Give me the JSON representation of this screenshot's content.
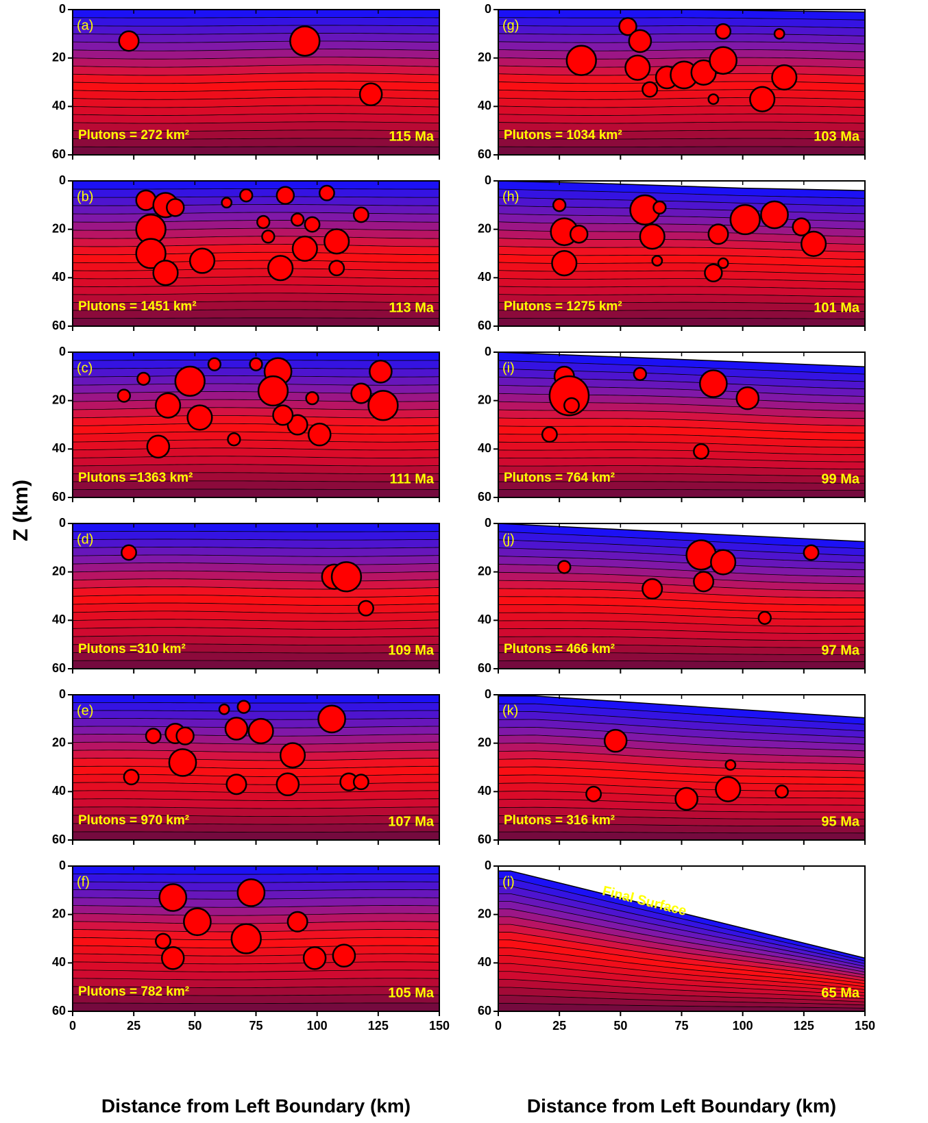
{
  "ylabel": "Z (km)",
  "colormap": [
    "#1010ff",
    "#8018a8",
    "#ff1010",
    "#d00a30",
    "#6a0a40"
  ],
  "pluton_color": "#ff0000",
  "chart_data": [
    {
      "type": "section",
      "label": "(a)",
      "annotation": "Plutons = 272 km²",
      "age": "115 Ma",
      "xlim": [
        0,
        150
      ],
      "ylim": [
        60,
        0
      ],
      "xticks": [
        0,
        25,
        50,
        75,
        100,
        125,
        150
      ],
      "yticks": [
        0,
        20,
        40,
        60
      ],
      "surface": {
        "x": [
          0,
          150
        ],
        "y": [
          0,
          0
        ]
      },
      "plutons": {
        "x": [
          23,
          95,
          122
        ],
        "y": [
          13,
          13,
          35
        ],
        "r": [
          4,
          6,
          4.5
        ]
      }
    },
    {
      "type": "section",
      "label": "(b)",
      "annotation": "Plutons = 1451 km²",
      "age": "113 Ma",
      "xlim": [
        0,
        150
      ],
      "ylim": [
        60,
        0
      ],
      "xticks": [
        0,
        25,
        50,
        75,
        100,
        125,
        150
      ],
      "yticks": [
        0,
        20,
        40,
        60
      ],
      "surface": {
        "x": [
          0,
          150
        ],
        "y": [
          0,
          0
        ]
      },
      "plutons": {
        "x": [
          30,
          38,
          42,
          32,
          32,
          38,
          53,
          63,
          71,
          78,
          80,
          87,
          92,
          85,
          95,
          104,
          108,
          108,
          118,
          98
        ],
        "y": [
          8,
          10,
          11,
          20,
          30,
          38,
          33,
          9,
          6,
          17,
          23,
          6,
          16,
          36,
          28,
          5,
          25,
          36,
          14,
          18
        ],
        "r": [
          4,
          5,
          3.5,
          6,
          6,
          5,
          5,
          2,
          2.5,
          2.5,
          2.5,
          3.5,
          2.5,
          5,
          5,
          3,
          5,
          3,
          3,
          3
        ]
      }
    },
    {
      "type": "section",
      "label": "(c)",
      "annotation": "Plutons =1363 km²",
      "age": "111 Ma",
      "xlim": [
        0,
        150
      ],
      "ylim": [
        60,
        0
      ],
      "xticks": [
        0,
        25,
        50,
        75,
        100,
        125,
        150
      ],
      "yticks": [
        0,
        20,
        40,
        60
      ],
      "surface": {
        "x": [
          0,
          150
        ],
        "y": [
          0,
          0
        ]
      },
      "plutons": {
        "x": [
          21,
          29,
          48,
          39,
          52,
          58,
          75,
          84,
          82,
          66,
          35,
          98,
          92,
          101,
          118,
          126,
          127,
          86
        ],
        "y": [
          18,
          11,
          12,
          22,
          27,
          5,
          5,
          8,
          16,
          36,
          39,
          19,
          30,
          34,
          17,
          8,
          22,
          26
        ],
        "r": [
          2.5,
          2.5,
          6,
          5,
          5,
          2.5,
          2.5,
          5.5,
          6,
          2.5,
          4.5,
          2.5,
          4,
          4.5,
          4,
          4.5,
          6,
          4
        ]
      }
    },
    {
      "type": "section",
      "label": "(d)",
      "annotation": "Plutons =310 km²",
      "age": "109 Ma",
      "xlim": [
        0,
        150
      ],
      "ylim": [
        60,
        0
      ],
      "xticks": [
        0,
        25,
        50,
        75,
        100,
        125,
        150
      ],
      "yticks": [
        0,
        20,
        40,
        60
      ],
      "surface": {
        "x": [
          0,
          150
        ],
        "y": [
          0,
          0
        ]
      },
      "plutons": {
        "x": [
          23,
          107,
          112,
          120
        ],
        "y": [
          12,
          22,
          22,
          35
        ],
        "r": [
          3,
          5,
          6,
          3
        ]
      }
    },
    {
      "type": "section",
      "label": "(e)",
      "annotation": "Plutons = 970 km²",
      "age": "107 Ma",
      "xlim": [
        0,
        150
      ],
      "ylim": [
        60,
        0
      ],
      "xticks": [
        0,
        25,
        50,
        75,
        100,
        125,
        150
      ],
      "yticks": [
        0,
        20,
        40,
        60
      ],
      "surface": {
        "x": [
          0,
          150
        ],
        "y": [
          0,
          0
        ]
      },
      "plutons": {
        "x": [
          33,
          42,
          46,
          45,
          62,
          67,
          70,
          77,
          90,
          88,
          67,
          106,
          113,
          118,
          24
        ],
        "y": [
          17,
          16,
          17,
          28,
          6,
          14,
          5,
          15,
          25,
          37,
          37,
          10,
          36,
          36,
          34
        ],
        "r": [
          3,
          4,
          3.5,
          5.5,
          2,
          4.5,
          2.5,
          5,
          5,
          4.5,
          4,
          5.5,
          3.5,
          3,
          3
        ]
      }
    },
    {
      "type": "section",
      "label": "(f)",
      "annotation": "Plutons = 782 km²",
      "age": "105 Ma",
      "xlim": [
        0,
        150
      ],
      "ylim": [
        60,
        0
      ],
      "xticks": [
        0,
        25,
        50,
        75,
        100,
        125,
        150
      ],
      "yticks": [
        0,
        20,
        40,
        60
      ],
      "xlabel": "Distance from Left Boundary (km)",
      "surface": {
        "x": [
          0,
          150
        ],
        "y": [
          0,
          0
        ]
      },
      "plutons": {
        "x": [
          41,
          51,
          37,
          41,
          73,
          71,
          92,
          99,
          111
        ],
        "y": [
          13,
          23,
          31,
          38,
          11,
          30,
          23,
          38,
          37
        ],
        "r": [
          5.5,
          5.5,
          3,
          4.5,
          5.5,
          6,
          4,
          4.5,
          4.5
        ]
      }
    },
    {
      "type": "section",
      "label": "(g)",
      "annotation": "Plutons = 1034 km²",
      "age": "103 Ma",
      "xlim": [
        0,
        150
      ],
      "ylim": [
        60,
        0
      ],
      "xticks": [
        0,
        25,
        50,
        75,
        100,
        125,
        150
      ],
      "yticks": [
        0,
        20,
        40,
        60
      ],
      "surface": {
        "x": [
          0,
          75,
          150
        ],
        "y": [
          0,
          0,
          1
        ]
      },
      "plutons": {
        "x": [
          53,
          58,
          34,
          57,
          92,
          115,
          69,
          76,
          84,
          92,
          108,
          117,
          88,
          62
        ],
        "y": [
          7,
          13,
          21,
          24,
          9,
          10,
          28,
          27,
          26,
          21,
          37,
          28,
          37,
          33
        ],
        "r": [
          3.5,
          4.5,
          6,
          5,
          3,
          2,
          4.5,
          5.5,
          5,
          5.5,
          5,
          5,
          2,
          3
        ]
      }
    },
    {
      "type": "section",
      "label": "(h)",
      "annotation": "Plutons = 1275 km²",
      "age": "101 Ma",
      "xlim": [
        0,
        150
      ],
      "ylim": [
        60,
        0
      ],
      "xticks": [
        0,
        25,
        50,
        75,
        100,
        125,
        150
      ],
      "yticks": [
        0,
        20,
        40,
        60
      ],
      "surface": {
        "x": [
          0,
          40,
          100,
          150
        ],
        "y": [
          0,
          1,
          3,
          4
        ]
      },
      "plutons": {
        "x": [
          25,
          27,
          27,
          33,
          60,
          66,
          63,
          65,
          90,
          88,
          92,
          101,
          113,
          124,
          129
        ],
        "y": [
          10,
          21,
          34,
          22,
          12,
          11,
          23,
          33,
          22,
          38,
          34,
          16,
          14,
          19,
          26
        ],
        "r": [
          2.5,
          5.5,
          5,
          3.5,
          6,
          2.5,
          5,
          2,
          4,
          3.5,
          2,
          6,
          5.5,
          3.5,
          5
        ]
      }
    },
    {
      "type": "section",
      "label": "(i)",
      "annotation": "Plutons = 764 km²",
      "age": "99 Ma",
      "xlim": [
        0,
        150
      ],
      "ylim": [
        60,
        0
      ],
      "xticks": [
        0,
        25,
        50,
        75,
        100,
        125,
        150
      ],
      "yticks": [
        0,
        20,
        40,
        60
      ],
      "surface": {
        "x": [
          0,
          25,
          150
        ],
        "y": [
          0,
          1,
          6
        ]
      },
      "plutons": {
        "x": [
          27,
          29,
          30,
          21,
          58,
          83,
          88,
          102
        ],
        "y": [
          10,
          18,
          22,
          34,
          9,
          41,
          13,
          19
        ],
        "r": [
          4,
          8,
          3,
          3,
          2.5,
          3,
          5.5,
          4.5
        ]
      }
    },
    {
      "type": "section",
      "label": "(j)",
      "annotation": "Plutons = 466 km²",
      "age": "97 Ma",
      "xlim": [
        0,
        150
      ],
      "ylim": [
        60,
        0
      ],
      "xticks": [
        0,
        25,
        50,
        75,
        100,
        125,
        150
      ],
      "yticks": [
        0,
        20,
        40,
        60
      ],
      "surface": {
        "x": [
          0,
          150
        ],
        "y": [
          0,
          7.5
        ]
      },
      "plutons": {
        "x": [
          27,
          63,
          83,
          92,
          84,
          109,
          128
        ],
        "y": [
          18,
          27,
          13,
          16,
          24,
          39,
          12
        ],
        "r": [
          2.5,
          4,
          6,
          5,
          4,
          2.5,
          3
        ]
      }
    },
    {
      "type": "section",
      "label": "(k)",
      "annotation": "Plutons = 316 km²",
      "age": "95 Ma",
      "xlim": [
        0,
        150
      ],
      "ylim": [
        60,
        0
      ],
      "xticks": [
        0,
        25,
        50,
        75,
        100,
        125,
        150
      ],
      "yticks": [
        0,
        20,
        40,
        60
      ],
      "surface": {
        "x": [
          0,
          15,
          150
        ],
        "y": [
          0.5,
          0.5,
          9.5
        ]
      },
      "plutons": {
        "x": [
          48,
          39,
          77,
          94,
          116,
          95
        ],
        "y": [
          19,
          41,
          43,
          39,
          40,
          29
        ],
        "r": [
          4.5,
          3,
          4.5,
          5,
          2.5,
          2
        ]
      }
    },
    {
      "type": "section",
      "label": "(i)",
      "annotation": "Final Surface",
      "age": "65 Ma",
      "xlim": [
        0,
        150
      ],
      "ylim": [
        60,
        0
      ],
      "xticks": [
        0,
        25,
        50,
        75,
        100,
        125,
        150
      ],
      "yticks": [
        0,
        20,
        40,
        60
      ],
      "xlabel": "Distance from Left Boundary (km)",
      "surface": {
        "x": [
          0,
          5,
          150
        ],
        "y": [
          2,
          2,
          38
        ]
      }
    }
  ]
}
